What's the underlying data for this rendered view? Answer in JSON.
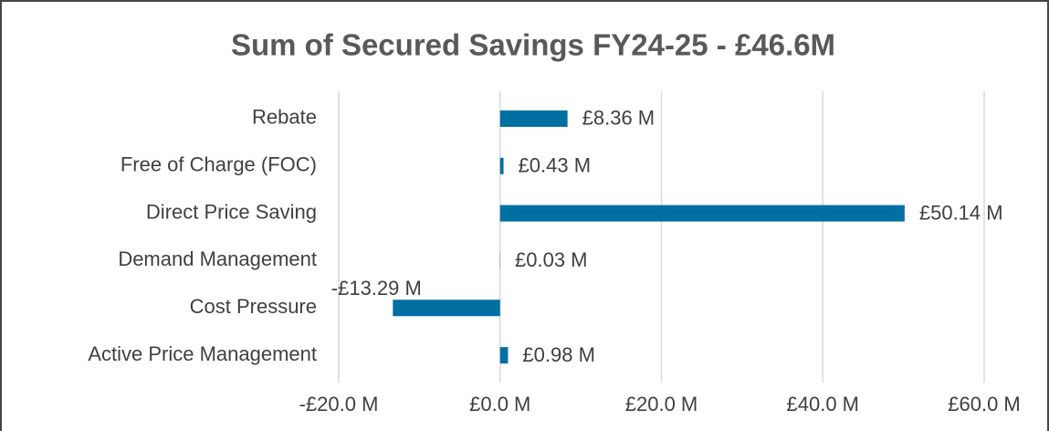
{
  "chart_data": {
    "type": "bar",
    "orientation": "horizontal",
    "title": "Sum of Secured Savings FY24-25 - £46.6M",
    "categories": [
      "Rebate",
      "Free of Charge (FOC)",
      "Direct Price Saving",
      "Demand Management",
      "Cost Pressure",
      "Active Price Management"
    ],
    "values": [
      8.36,
      0.43,
      50.14,
      0.03,
      -13.29,
      0.98
    ],
    "value_labels": [
      "£8.36 M",
      "£0.43 M",
      "£50.14 M",
      "£0.03 M",
      "-£13.29 M",
      "£0.98 M"
    ],
    "color": "#0070a2",
    "xlim": [
      -20,
      60
    ],
    "xticks": [
      {
        "value": -20,
        "label": "-£20.0 M"
      },
      {
        "value": 0,
        "label": "£0.0 M"
      },
      {
        "value": 20,
        "label": "£20.0 M"
      },
      {
        "value": 40,
        "label": "£40.0 M"
      },
      {
        "value": 60,
        "label": "£60.0 M"
      }
    ],
    "grid": true
  }
}
